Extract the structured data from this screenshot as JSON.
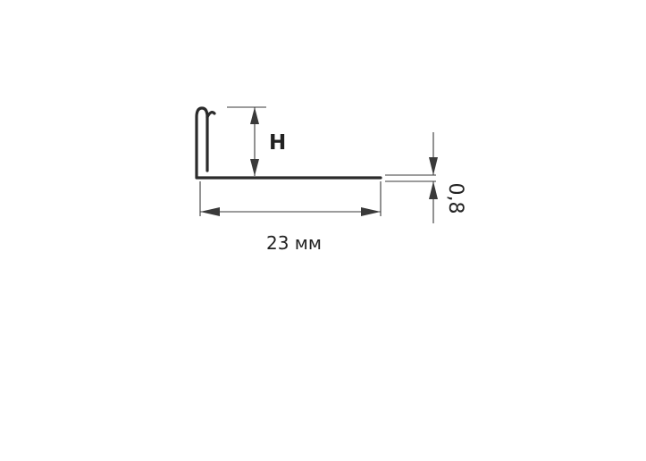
{
  "diagram": {
    "height_label": "H",
    "width_label": "23 мм",
    "thickness_label": "0,8",
    "colors": {
      "background": "#ffffff",
      "profile_stroke": "#2b2b2b",
      "dimension_lines": "#3a3a3a",
      "text": "#222222"
    }
  }
}
